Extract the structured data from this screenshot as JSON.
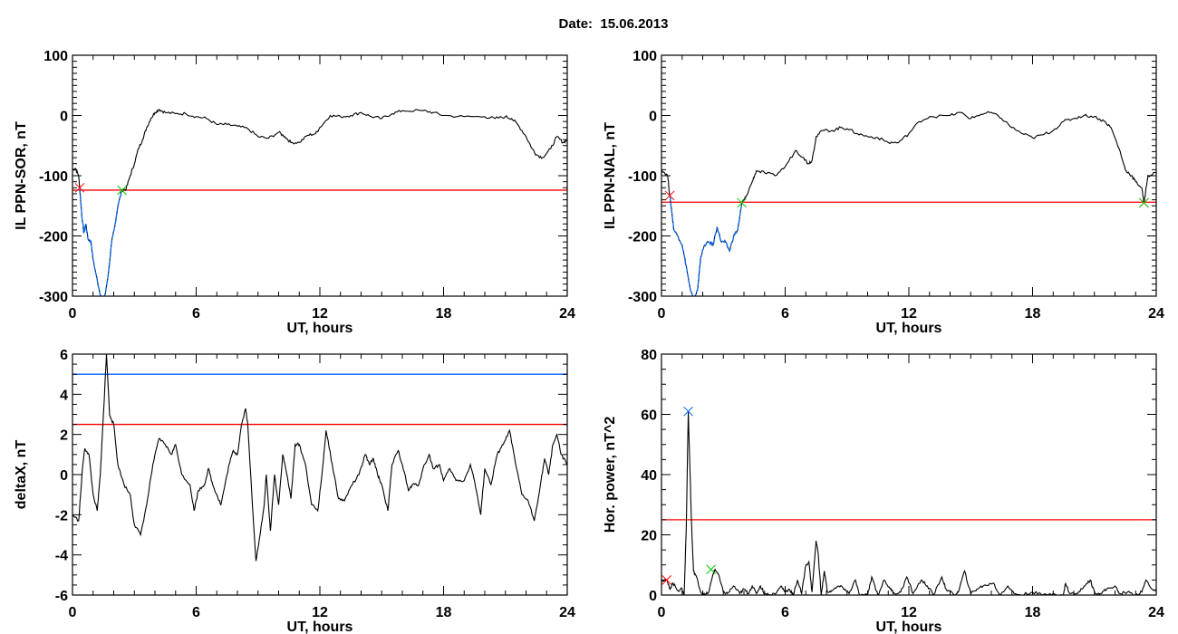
{
  "title": "Date:  15.06.2013",
  "chart_data": [
    {
      "type": "line",
      "title": "",
      "xlabel": "UT, hours",
      "ylabel": "IL PPN-SOR, nT",
      "xlim": [
        0,
        24
      ],
      "ylim": [
        -300,
        100
      ],
      "xticks": [
        0,
        6,
        12,
        18,
        24
      ],
      "yticks": [
        100,
        0,
        -100,
        -200,
        -300
      ],
      "x_minor_step": 1,
      "y_minor_step": 10,
      "grid": false,
      "series": [
        {
          "name": "IL PPN-SOR",
          "color": "#000000",
          "x": [
            0,
            0.15,
            0.3,
            0.35,
            0.45,
            0.55,
            0.65,
            0.75,
            0.9,
            1.0,
            1.15,
            1.3,
            1.45,
            1.6,
            1.75,
            1.9,
            2.05,
            2.2,
            2.4,
            2.6,
            2.8,
            3.0,
            3.2,
            3.4,
            3.6,
            3.8,
            4.0,
            4.2,
            4.5,
            5,
            5.5,
            6,
            6.5,
            7,
            7.5,
            8,
            8.5,
            9,
            9.5,
            10,
            10.3,
            10.6,
            11,
            11.4,
            11.8,
            12,
            12.5,
            13,
            13.5,
            14,
            14.5,
            15,
            15.5,
            16,
            17,
            17.5,
            18,
            19,
            20,
            20.5,
            21,
            21.3,
            21.6,
            22,
            22.3,
            22.5,
            22.8,
            23.2,
            23.5,
            23.8,
            24
          ],
          "y": [
            -90,
            -88,
            -100,
            -120,
            -165,
            -195,
            -180,
            -205,
            -210,
            -240,
            -265,
            -290,
            -308,
            -295,
            -260,
            -210,
            -185,
            -150,
            -124,
            -122,
            -100,
            -80,
            -55,
            -40,
            -20,
            -5,
            5,
            10,
            5,
            3,
            3,
            -2,
            -5,
            -15,
            -15,
            -18,
            -22,
            -35,
            -38,
            -28,
            -35,
            -45,
            -45,
            -33,
            -30,
            -20,
            0,
            -2,
            0,
            5,
            -2,
            -5,
            3,
            8,
            8,
            5,
            0,
            -2,
            -2,
            -5,
            -2,
            -5,
            -15,
            -35,
            -55,
            -65,
            -70,
            -55,
            -35,
            -45,
            -40
          ]
        }
      ],
      "highlight": {
        "color": "#0066ff",
        "from": 0.35,
        "to": 2.4
      },
      "threshold_lines": [
        {
          "value": -124,
          "color": "#ff0000"
        }
      ],
      "markers": [
        {
          "x": 0.35,
          "y": -120,
          "color": "#ff0000"
        },
        {
          "x": 2.4,
          "y": -124,
          "color": "#00cc00"
        }
      ]
    },
    {
      "type": "line",
      "title": "",
      "xlabel": "UT, hours",
      "ylabel": "IL PPN-NAL, nT",
      "xlim": [
        0,
        24
      ],
      "ylim": [
        -300,
        100
      ],
      "xticks": [
        0,
        6,
        12,
        18,
        24
      ],
      "yticks": [
        100,
        0,
        -100,
        -200,
        -300
      ],
      "x_minor_step": 1,
      "y_minor_step": 10,
      "grid": false,
      "series": [
        {
          "name": "IL PPN-NAL",
          "color": "#000000",
          "x": [
            0,
            0.3,
            0.4,
            0.5,
            0.6,
            0.8,
            1.0,
            1.2,
            1.4,
            1.55,
            1.75,
            1.9,
            2.1,
            2.3,
            2.5,
            2.7,
            2.9,
            3.1,
            3.3,
            3.5,
            3.7,
            3.9,
            4.1,
            4.4,
            4.6,
            5,
            5.5,
            6,
            6.5,
            6.9,
            7.1,
            7.3,
            7.5,
            7.8,
            8.3,
            8.7,
            9,
            9.5,
            10,
            10.5,
            11,
            11.5,
            12,
            12.5,
            13,
            14,
            14.5,
            15,
            15.5,
            16,
            16.5,
            17,
            17.5,
            18,
            18.5,
            19,
            19.5,
            20,
            20.5,
            21,
            21.5,
            21.8,
            22.2,
            22.5,
            22.8,
            23,
            23.3,
            23.4,
            23.6,
            24
          ],
          "y": [
            -90,
            -100,
            -133,
            -160,
            -190,
            -200,
            -215,
            -250,
            -290,
            -305,
            -290,
            -235,
            -215,
            -210,
            -215,
            -185,
            -210,
            -210,
            -225,
            -200,
            -190,
            -145,
            -135,
            -110,
            -92,
            -95,
            -100,
            -85,
            -58,
            -70,
            -80,
            -75,
            -35,
            -25,
            -25,
            -20,
            -22,
            -30,
            -35,
            -37,
            -45,
            -45,
            -30,
            -10,
            -2,
            0,
            5,
            -5,
            2,
            5,
            -5,
            -20,
            -30,
            -37,
            -32,
            -25,
            -10,
            -5,
            0,
            -2,
            -10,
            -20,
            -55,
            -90,
            -100,
            -110,
            -120,
            -145,
            -100,
            -95
          ]
        }
      ],
      "highlight": {
        "color": "#0066ff",
        "from": 0.4,
        "to": 3.9
      },
      "threshold_lines": [
        {
          "value": -144,
          "color": "#ff0000"
        }
      ],
      "markers": [
        {
          "x": 0.4,
          "y": -133,
          "color": "#ff0000"
        },
        {
          "x": 3.9,
          "y": -145,
          "color": "#00cc00"
        },
        {
          "x": 23.4,
          "y": -145,
          "color": "#ff0000"
        },
        {
          "x": 23.4,
          "y": -145,
          "color": "#00cc00"
        }
      ]
    },
    {
      "type": "line",
      "title": "",
      "xlabel": "UT, hours",
      "ylabel": "deltaX, nT",
      "xlim": [
        0,
        24
      ],
      "ylim": [
        -6,
        6
      ],
      "xticks": [
        0,
        6,
        12,
        18,
        24
      ],
      "yticks": [
        6,
        4,
        2,
        0,
        -2,
        -4,
        -6
      ],
      "x_minor_step": 1,
      "y_minor_step": 0.5,
      "grid": false,
      "series": [
        {
          "name": "deltaX",
          "color": "#000000",
          "x": [
            0,
            0.3,
            0.5,
            0.6,
            0.8,
            1.0,
            1.2,
            1.35,
            1.5,
            1.65,
            1.8,
            2.0,
            2.2,
            2.5,
            2.8,
            3.0,
            3.3,
            3.6,
            3.9,
            4.2,
            4.5,
            4.8,
            5.0,
            5.3,
            5.7,
            5.9,
            6.1,
            6.4,
            6.6,
            6.8,
            7.0,
            7.2,
            7.4,
            7.6,
            7.8,
            8.0,
            8.2,
            8.4,
            8.5,
            8.7,
            8.9,
            9.1,
            9.3,
            9.4,
            9.6,
            9.8,
            10.0,
            10.2,
            10.4,
            10.6,
            10.8,
            11.0,
            11.3,
            11.6,
            11.9,
            12.1,
            12.3,
            12.6,
            12.9,
            13.2,
            13.5,
            13.9,
            14.2,
            14.4,
            14.6,
            14.8,
            15.0,
            15.3,
            15.5,
            15.8,
            16.0,
            16.3,
            16.5,
            16.8,
            17.0,
            17.3,
            17.5,
            17.8,
            18.0,
            18.3,
            18.6,
            19.0,
            19.3,
            19.5,
            19.8,
            20.0,
            20.3,
            20.6,
            20.9,
            21.2,
            21.5,
            21.8,
            22.1,
            22.4,
            22.7,
            22.9,
            23.1,
            23.3,
            23.5,
            23.7,
            24
          ],
          "y": [
            -2,
            -2.3,
            0.5,
            1.3,
            1,
            -1,
            -1.8,
            0,
            3,
            6,
            3,
            2.5,
            0.5,
            -0.5,
            -1,
            -2.5,
            -3,
            -1.5,
            0.5,
            1.8,
            1.5,
            1,
            1.5,
            0,
            -0.5,
            -1.8,
            -0.8,
            -0.5,
            0.3,
            -0.5,
            -1,
            -1.5,
            -0.5,
            0.5,
            1.2,
            1.0,
            2.5,
            3.3,
            2.5,
            -1,
            -4.3,
            -3,
            -1.5,
            0,
            -2.8,
            0,
            -1.5,
            1.0,
            0,
            -1.2,
            1.5,
            1.5,
            0.5,
            -1.5,
            -1.8,
            0,
            2.2,
            0.5,
            -1.2,
            -1.3,
            -0.6,
            0,
            1.0,
            0.5,
            0.8,
            0,
            -0.5,
            -1.8,
            0.5,
            1.2,
            0.5,
            -0.8,
            -0.5,
            -0.5,
            0.3,
            1.0,
            0.3,
            0.5,
            -0.3,
            0.3,
            -0.3,
            -0.3,
            0.5,
            -0.3,
            -2.0,
            0.3,
            -0.5,
            1.0,
            1.5,
            2.2,
            0.5,
            -1.0,
            -1.3,
            -2.3,
            -0.5,
            0.8,
            0,
            1.5,
            2.0,
            1.0,
            0.5
          ]
        }
      ],
      "threshold_lines": [
        {
          "value": 5,
          "color": "#0066ff"
        },
        {
          "value": 2.5,
          "color": "#ff0000"
        }
      ],
      "markers": []
    },
    {
      "type": "line",
      "title": "",
      "xlabel": "UT, hours",
      "ylabel": "Hor. power, nT^2",
      "xlim": [
        0,
        24
      ],
      "ylim": [
        0,
        80
      ],
      "xticks": [
        0,
        6,
        12,
        18,
        24
      ],
      "yticks": [
        80,
        60,
        40,
        20,
        0
      ],
      "x_minor_step": 1,
      "y_minor_step": 5,
      "grid": false,
      "series": [
        {
          "name": "Hor. power",
          "color": "#000000",
          "x": [
            0,
            0.25,
            0.4,
            0.55,
            0.8,
            1.0,
            1.1,
            1.2,
            1.3,
            1.45,
            1.55,
            1.7,
            1.9,
            2.1,
            2.3,
            2.5,
            2.6,
            2.75,
            3.0,
            3.2,
            3.5,
            3.8,
            4.0,
            4.2,
            4.4,
            4.6,
            4.8,
            5.0,
            5.3,
            5.6,
            5.8,
            6.0,
            6.2,
            6.4,
            6.6,
            6.8,
            7.0,
            7.15,
            7.3,
            7.5,
            7.6,
            7.75,
            7.9,
            8.05,
            8.3,
            8.6,
            8.9,
            9.1,
            9.4,
            9.6,
            10,
            10.2,
            10.5,
            10.8,
            11.1,
            11.3,
            11.6,
            11.9,
            12.2,
            12.6,
            12.9,
            13.2,
            13.6,
            13.8,
            14.2,
            14.4,
            14.7,
            15.0,
            15.3,
            15.6,
            16.1,
            16.4,
            16.8,
            17.1,
            17.5,
            18.0,
            18.5,
            19.0,
            19.5,
            19.6,
            19.8,
            20.2,
            20.5,
            20.8,
            21.0,
            21.3,
            21.6,
            22.0,
            22.2,
            22.6,
            23.0,
            23.3,
            23.5,
            23.8,
            24
          ],
          "y": [
            5,
            5,
            2,
            4,
            1.5,
            2,
            0,
            22,
            61,
            25,
            8,
            6,
            1,
            0,
            1,
            7,
            8.5,
            7,
            1,
            0.5,
            3,
            0.5,
            2,
            0.5,
            3,
            0.5,
            3,
            0.5,
            0,
            1,
            3,
            1,
            2,
            0,
            5,
            0.5,
            10,
            11,
            1,
            18,
            14,
            0,
            8,
            1,
            1.5,
            3,
            2,
            0.5,
            5,
            0,
            0,
            6,
            0,
            5,
            2,
            0.5,
            1,
            6,
            0.5,
            5,
            3,
            0,
            6,
            2,
            0,
            1,
            8,
            0.5,
            2,
            3,
            4,
            0,
            3,
            0.5,
            0,
            1,
            0,
            0.5,
            0,
            4,
            0.5,
            0.5,
            3,
            5,
            1,
            0.5,
            2,
            3,
            0.5,
            1,
            0,
            1,
            5,
            2,
            1
          ]
        }
      ],
      "threshold_lines": [
        {
          "value": 25,
          "color": "#ff0000"
        }
      ],
      "markers": [
        {
          "x": 0.25,
          "y": 5,
          "color": "#ff0000"
        },
        {
          "x": 1.3,
          "y": 61,
          "color": "#0066ff"
        },
        {
          "x": 2.4,
          "y": 8.5,
          "color": "#00cc00"
        }
      ]
    }
  ]
}
